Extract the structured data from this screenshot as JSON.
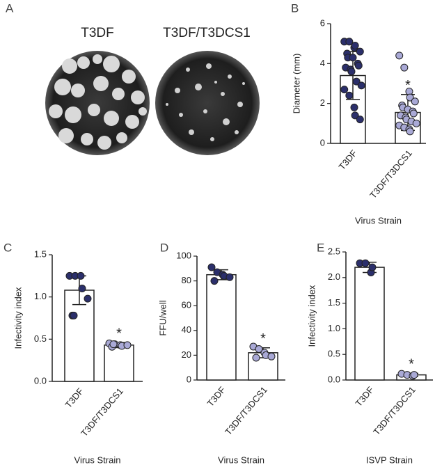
{
  "panel_a": {
    "label": "A",
    "titles": [
      "T3DF",
      "T3DF/T3DCS1"
    ]
  },
  "chart_data": [
    {
      "type": "bar",
      "panel_label": "B",
      "ylabel": "Diameter (mm)",
      "xlabel": "Virus Strain",
      "annotation": "*",
      "categories": [
        "T3DF",
        "T3DF/T3DCS1"
      ],
      "values": [
        3.4,
        1.55
      ],
      "errors": [
        1.2,
        0.9
      ],
      "points": [
        [
          5.1,
          5.1,
          4.8,
          4.9,
          4.6,
          4.5,
          4.3,
          4.3,
          4.0,
          3.9,
          3.8,
          3.7,
          3.6,
          3.1,
          2.9,
          2.7,
          2.4,
          1.8,
          1.4,
          1.2
        ],
        [
          4.4,
          3.8,
          2.6,
          2.3,
          2.1,
          1.9,
          1.8,
          1.7,
          1.6,
          1.5,
          1.4,
          1.3,
          1.2,
          1.1,
          1.0,
          0.9,
          0.8,
          0.7,
          0.6
        ]
      ],
      "point_colors": [
        "#2b2f6b",
        "#a9a9d6"
      ],
      "ylim": [
        0,
        6
      ],
      "yticks": [
        0,
        2,
        4,
        6
      ]
    },
    {
      "type": "bar",
      "panel_label": "C",
      "ylabel": "Infectivity index",
      "xlabel": "Virus Strain",
      "annotation": "*",
      "categories": [
        "T3DF",
        "T3DF/T3DCS1"
      ],
      "values": [
        1.08,
        0.43
      ],
      "errors": [
        0.17,
        0.03
      ],
      "points": [
        [
          1.25,
          1.25,
          1.25,
          1.1,
          0.98,
          0.78,
          0.78
        ],
        [
          0.45,
          0.44,
          0.43,
          0.42,
          0.43,
          0.41,
          0.44
        ]
      ],
      "point_colors": [
        "#2b2f6b",
        "#a9a9d6"
      ],
      "ylim": [
        0,
        1.5
      ],
      "yticks": [
        {
          "value": 0,
          "label": "0.0"
        },
        0.5,
        {
          "value": 1,
          "label": "1.0"
        },
        1.5
      ]
    },
    {
      "type": "bar",
      "panel_label": "D",
      "ylabel": "FFU/well",
      "xlabel": "Virus Strain",
      "annotation": "*",
      "categories": [
        "T3DF",
        "T3DF/T3DCS1"
      ],
      "values": [
        85,
        22
      ],
      "errors": [
        4,
        4
      ],
      "points": [
        [
          91,
          87,
          85,
          84,
          83,
          80
        ],
        [
          27,
          25,
          22,
          20,
          19,
          18
        ]
      ],
      "point_colors": [
        "#2b2f6b",
        "#a9a9d6"
      ],
      "ylim": [
        0,
        100
      ],
      "yticks": [
        0,
        20,
        40,
        60,
        80,
        100
      ]
    },
    {
      "type": "bar",
      "panel_label": "E",
      "ylabel": "Infectivity index",
      "xlabel": "ISVP Strain",
      "annotation": "*",
      "categories": [
        "T3DF",
        "T3DF/T3DCS1"
      ],
      "values": [
        2.2,
        0.1
      ],
      "errors": [
        0.1,
        0.03
      ],
      "points": [
        [
          2.28,
          2.28,
          2.1,
          2.2
        ],
        [
          0.12,
          0.1,
          0.08,
          0.1
        ]
      ],
      "point_colors": [
        "#2b2f6b",
        "#a9a9d6"
      ],
      "ylim": [
        0,
        2.5
      ],
      "yticks": [
        {
          "value": 0,
          "label": "0.0"
        },
        0.5,
        {
          "value": 1,
          "label": "1.0"
        },
        1.5,
        {
          "value": 2,
          "label": "2.0"
        },
        2.5
      ]
    }
  ]
}
